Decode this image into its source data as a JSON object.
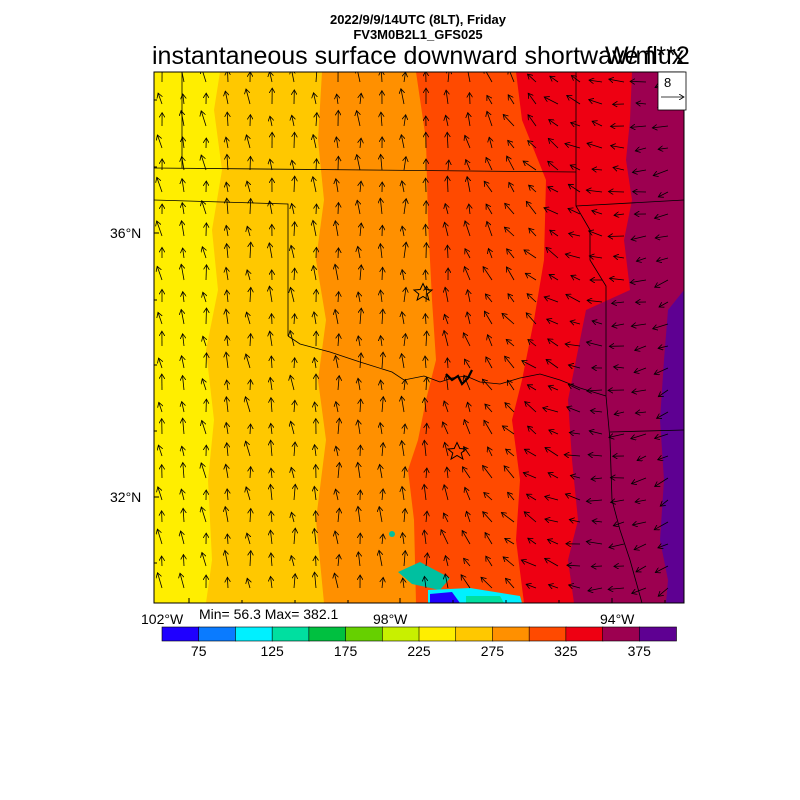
{
  "header": {
    "datetime": "2022/9/9/14UTC (8LT), Friday",
    "model": "FV3M0B2L1_GFS025",
    "field_title": "instantaneous surface downward shortwave flux",
    "units": "W/m**2"
  },
  "map": {
    "lat_labels": [
      "36°N",
      "32°N"
    ],
    "lon_labels": [
      "102°W",
      "98°W",
      "94°W"
    ],
    "stats": "Min= 56.3 Max= 382.1",
    "reference_vector": "8"
  },
  "colorbar": {
    "colors": [
      "#1f00ff",
      "#0a7bff",
      "#00f0ff",
      "#00dfa0",
      "#00c040",
      "#66d000",
      "#c8f000",
      "#ffee00",
      "#ffc800",
      "#ff9000",
      "#ff4a00",
      "#ee0012",
      "#9c0050",
      "#5e0092"
    ],
    "tick_labels": [
      "75",
      "125",
      "175",
      "225",
      "275",
      "325",
      "375"
    ]
  }
}
